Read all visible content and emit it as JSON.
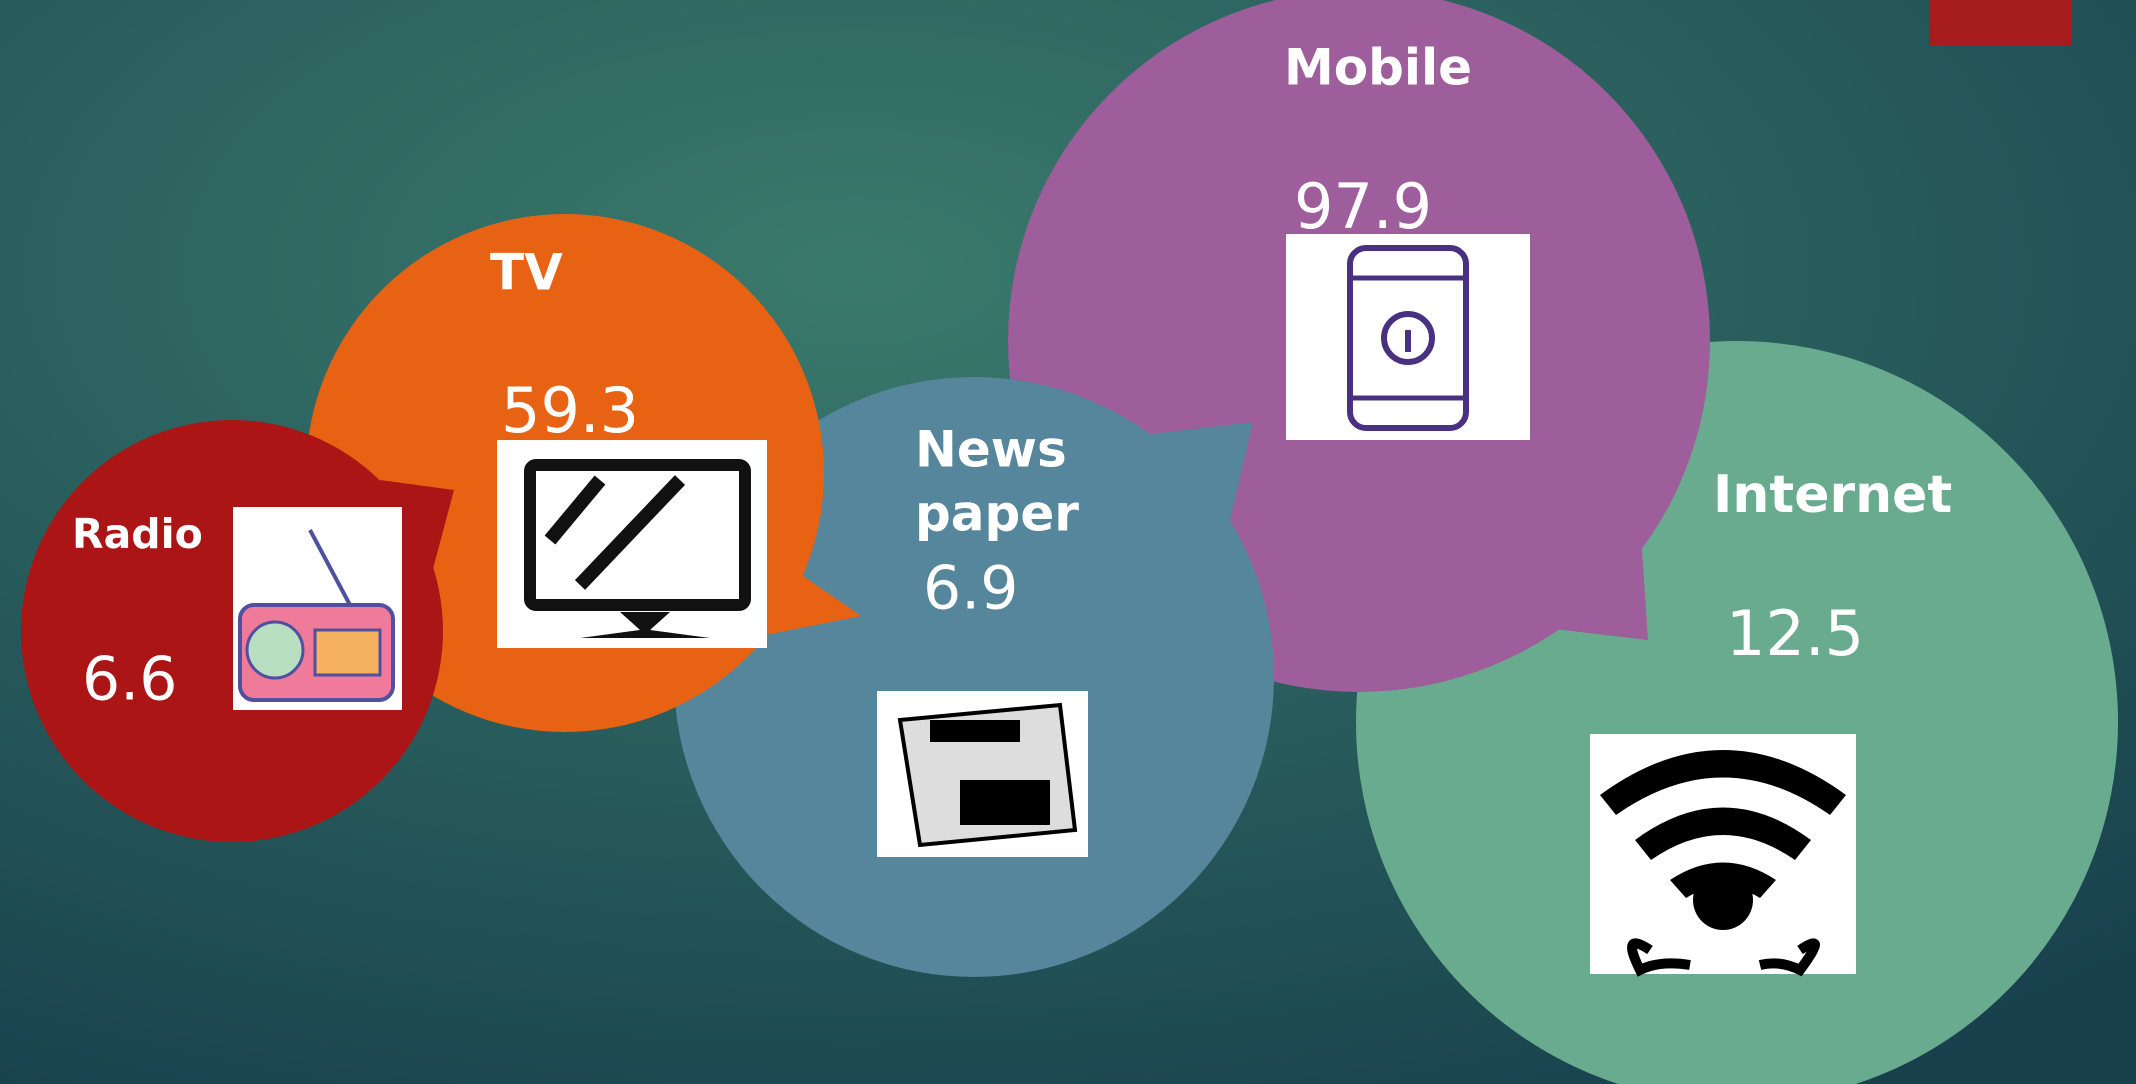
{
  "bubbles": [
    {
      "label": "Radio",
      "value": 6.6
    },
    {
      "label": "TV",
      "value": 59.3
    },
    {
      "label": "News",
      "label2": "paper",
      "value": 6.9
    },
    {
      "label": "Mobile",
      "value": 97.9
    },
    {
      "label": "Internet",
      "value": 12.5
    }
  ]
}
